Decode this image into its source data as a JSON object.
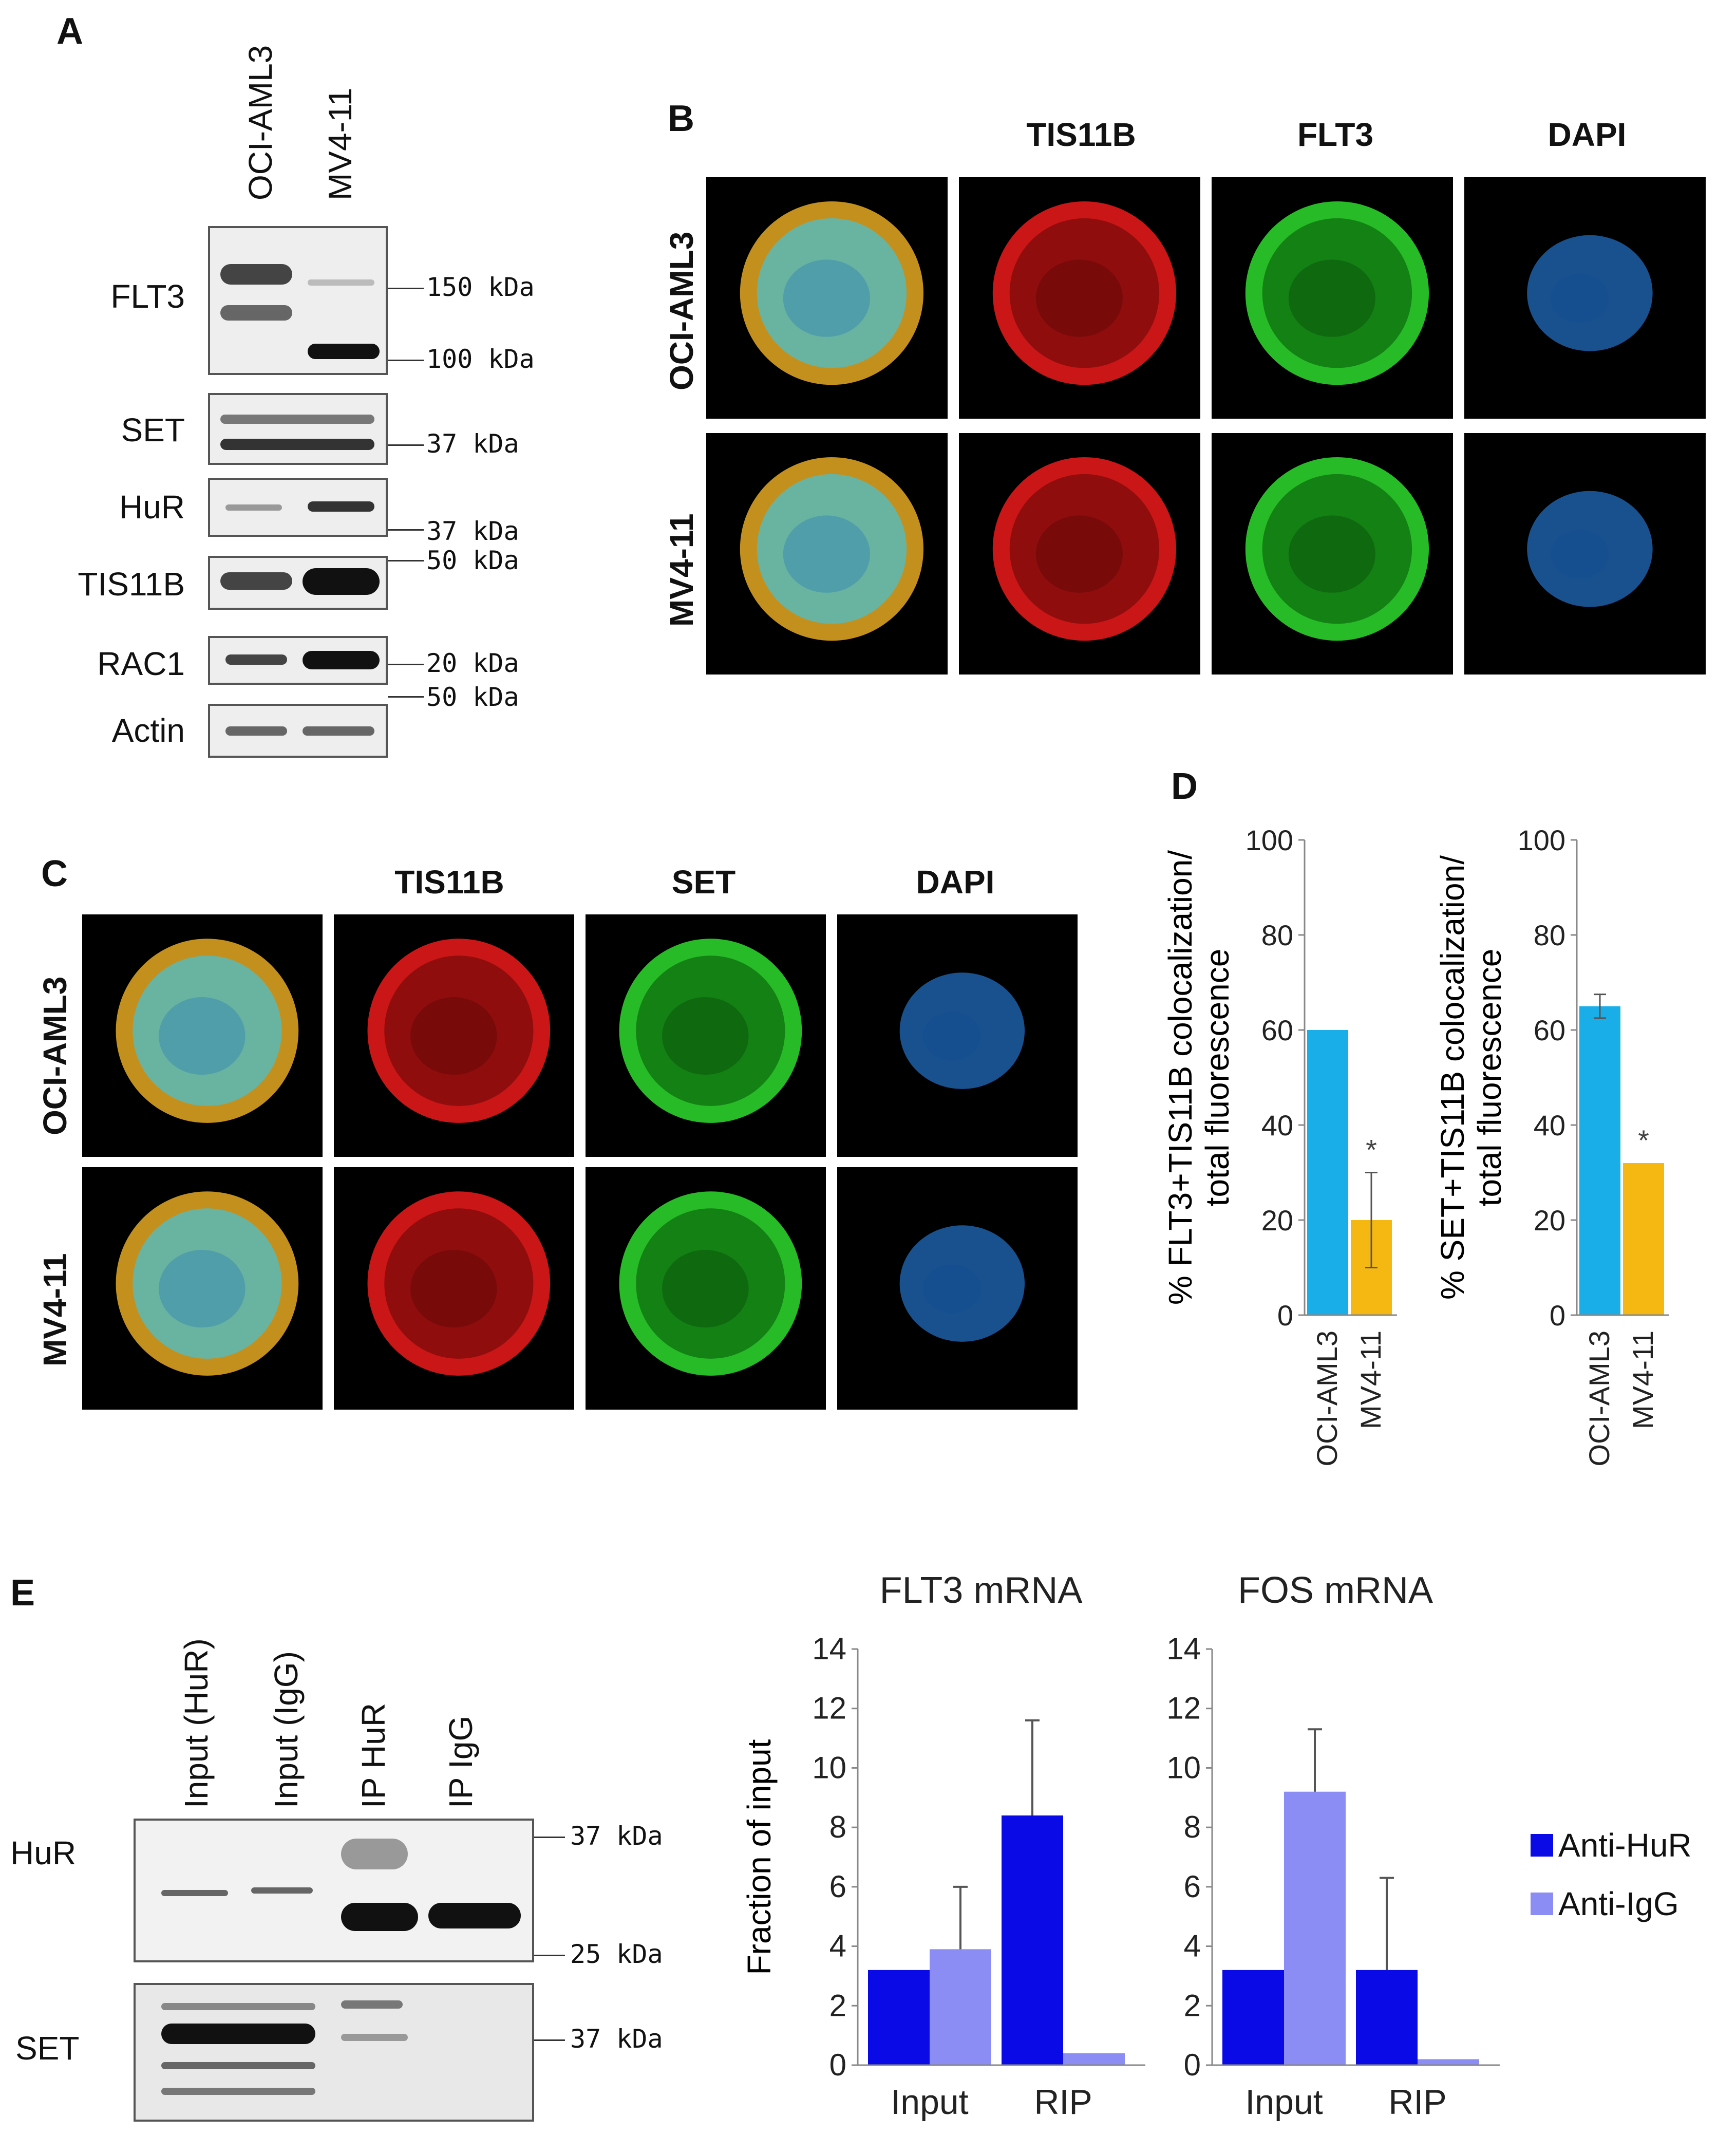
{
  "panels": {
    "A": "A",
    "B": "B",
    "C": "C",
    "D": "D",
    "E": "E"
  },
  "panelA": {
    "lanes": [
      "OCI-AML3",
      "MV4-11"
    ],
    "blots": [
      {
        "label": "FLT3",
        "markers": [
          "150 kDa",
          "100 kDa"
        ]
      },
      {
        "label": "SET",
        "markers": [
          "37 kDa"
        ]
      },
      {
        "label": "HuR",
        "markers": [
          "37 kDa"
        ]
      },
      {
        "label": "TIS11B",
        "markers": [
          "50 kDa"
        ]
      },
      {
        "label": "RAC1",
        "markers": [
          "20 kDa"
        ]
      },
      {
        "label": "Actin",
        "markers": [
          "50 kDa"
        ]
      }
    ]
  },
  "panelB": {
    "columns": [
      "TIS11B",
      "FLT3",
      "DAPI"
    ],
    "rows": [
      "OCI-AML3",
      "MV4-11"
    ]
  },
  "panelC": {
    "columns": [
      "TIS11B",
      "SET",
      "DAPI"
    ],
    "rows": [
      "OCI-AML3",
      "MV4-11"
    ]
  },
  "panelE": {
    "lanes": [
      "Input (HuR)",
      "Input (IgG)",
      "IP HuR",
      "IP IgG"
    ],
    "blots": [
      {
        "label": "HuR",
        "markers": [
          "37 kDa",
          "25 kDa"
        ]
      },
      {
        "label": "SET",
        "markers": [
          "37 kDa"
        ]
      }
    ],
    "legend": [
      {
        "name": "Anti-HuR",
        "color": "#0a0ae6"
      },
      {
        "name": "Anti-IgG",
        "color": "#8c8cf5"
      }
    ]
  },
  "chart_data": [
    {
      "type": "bar",
      "panel": "D",
      "categories": [
        "OCI-AML3",
        "MV4-11"
      ],
      "values": [
        60,
        20
      ],
      "errors": [
        0,
        10
      ],
      "colors": [
        "#1aaee8",
        "#f5b813"
      ],
      "significance": [
        "",
        "*"
      ],
      "ylabel": "% FLT3+TIS11B colocalization/ total fluorescence",
      "ylim": [
        0,
        100
      ],
      "yticks": [
        0,
        20,
        40,
        60,
        80,
        100
      ]
    },
    {
      "type": "bar",
      "panel": "D",
      "categories": [
        "OCI-AML3",
        "MV4-11"
      ],
      "values": [
        65,
        32
      ],
      "errors": [
        2.5,
        0
      ],
      "colors": [
        "#1aaee8",
        "#f5b813"
      ],
      "significance": [
        "",
        "*"
      ],
      "ylabel": "% SET+TIS11B colocalization/ total fluorescence",
      "ylim": [
        0,
        100
      ],
      "yticks": [
        0,
        20,
        40,
        60,
        80,
        100
      ]
    },
    {
      "type": "bar",
      "panel": "E",
      "title": "FLT3 mRNA",
      "categories": [
        "Input",
        "RIP"
      ],
      "series": [
        {
          "name": "Anti-HuR",
          "values": [
            3.2,
            8.4
          ],
          "errors": [
            0,
            3.2
          ]
        },
        {
          "name": "Anti-IgG",
          "values": [
            3.9,
            0.4
          ],
          "errors": [
            2.1,
            0
          ]
        }
      ],
      "ylabel": "Fraction of input",
      "ylim": [
        0,
        14
      ],
      "yticks": [
        0,
        2,
        4,
        6,
        8,
        10,
        12,
        14
      ]
    },
    {
      "type": "bar",
      "panel": "E",
      "title": "FOS mRNA",
      "categories": [
        "Input",
        "RIP"
      ],
      "series": [
        {
          "name": "Anti-HuR",
          "values": [
            3.2,
            3.2
          ],
          "errors": [
            0,
            3.1
          ]
        },
        {
          "name": "Anti-IgG",
          "values": [
            9.2,
            0.2
          ],
          "errors": [
            2.1,
            0
          ]
        }
      ],
      "ylabel": "",
      "ylim": [
        0,
        14
      ],
      "yticks": [
        0,
        2,
        4,
        6,
        8,
        10,
        12,
        14
      ]
    }
  ]
}
